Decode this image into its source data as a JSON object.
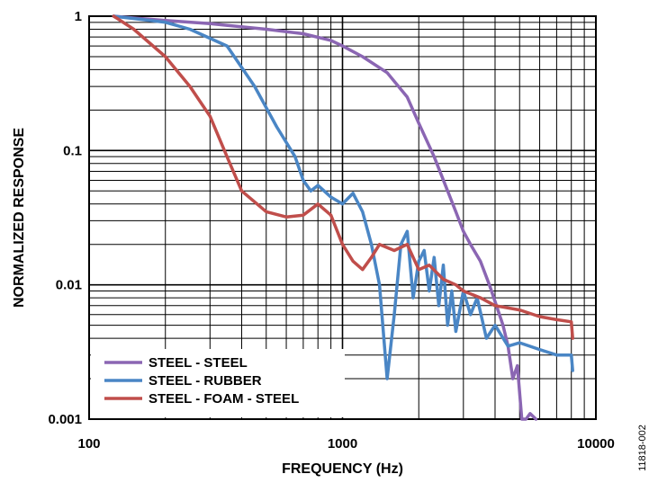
{
  "figure_id": "11818-002",
  "chart_data": {
    "type": "line",
    "title": "",
    "xlabel": "FREQUENCY (Hz)",
    "ylabel": "NORMALIZED RESPONSE",
    "x_scale": "log",
    "y_scale": "log",
    "xlim": [
      100,
      10000
    ],
    "ylim": [
      0.001,
      1
    ],
    "x_ticks": [
      100,
      1000,
      10000
    ],
    "x_tick_labels": [
      "100",
      "1000",
      "10000"
    ],
    "y_ticks": [
      1,
      0.1,
      0.01,
      0.001
    ],
    "y_tick_labels": [
      "1",
      "0.1",
      "0.01",
      "0.001"
    ],
    "grid": true,
    "legend_position": "bottom-left",
    "series": [
      {
        "name": "STEEL - STEEL",
        "color": "#8b66b3",
        "x": [
          125,
          150,
          200,
          300,
          500,
          700,
          900,
          1000,
          1200,
          1500,
          1800,
          2000,
          2300,
          2600,
          2800,
          3000,
          3200,
          3500,
          3800,
          4000,
          4300,
          4500,
          4700,
          4900,
          5100,
          5300,
          5500,
          5800
        ],
        "y": [
          1.0,
          0.97,
          0.93,
          0.88,
          0.8,
          0.74,
          0.66,
          0.6,
          0.5,
          0.38,
          0.25,
          0.16,
          0.09,
          0.05,
          0.035,
          0.025,
          0.02,
          0.015,
          0.01,
          0.0075,
          0.005,
          0.0035,
          0.002,
          0.0025,
          0.001,
          0.001,
          0.0011,
          0.001
        ]
      },
      {
        "name": "STEEL - RUBBER",
        "color": "#4a86c5",
        "x": [
          125,
          200,
          250,
          350,
          450,
          550,
          650,
          700,
          750,
          800,
          900,
          1000,
          1100,
          1200,
          1300,
          1400,
          1500,
          1600,
          1700,
          1800,
          1900,
          2000,
          2100,
          2200,
          2300,
          2400,
          2500,
          2600,
          2700,
          2800,
          3000,
          3200,
          3400,
          3700,
          4000,
          4500,
          5000,
          6000,
          7000,
          8000,
          8100
        ],
        "y": [
          1.0,
          0.9,
          0.8,
          0.6,
          0.3,
          0.15,
          0.09,
          0.06,
          0.05,
          0.055,
          0.045,
          0.04,
          0.048,
          0.035,
          0.02,
          0.01,
          0.002,
          0.006,
          0.02,
          0.025,
          0.008,
          0.015,
          0.018,
          0.009,
          0.016,
          0.007,
          0.014,
          0.005,
          0.009,
          0.0045,
          0.009,
          0.006,
          0.008,
          0.004,
          0.005,
          0.0035,
          0.0037,
          0.0033,
          0.003,
          0.003,
          0.0023
        ]
      },
      {
        "name": "STEEL - FOAM - STEEL",
        "color": "#c04e4b",
        "x": [
          125,
          150,
          200,
          250,
          300,
          350,
          400,
          500,
          600,
          700,
          800,
          900,
          1000,
          1100,
          1200,
          1300,
          1400,
          1600,
          1800,
          2000,
          2200,
          2500,
          2800,
          3000,
          3500,
          4000,
          5000,
          6000,
          7000,
          8000,
          8100
        ],
        "y": [
          1.0,
          0.8,
          0.5,
          0.3,
          0.18,
          0.09,
          0.05,
          0.035,
          0.032,
          0.033,
          0.04,
          0.033,
          0.02,
          0.015,
          0.013,
          0.016,
          0.02,
          0.018,
          0.02,
          0.013,
          0.014,
          0.011,
          0.01,
          0.009,
          0.008,
          0.007,
          0.0065,
          0.0058,
          0.0055,
          0.0053,
          0.004
        ]
      }
    ]
  }
}
